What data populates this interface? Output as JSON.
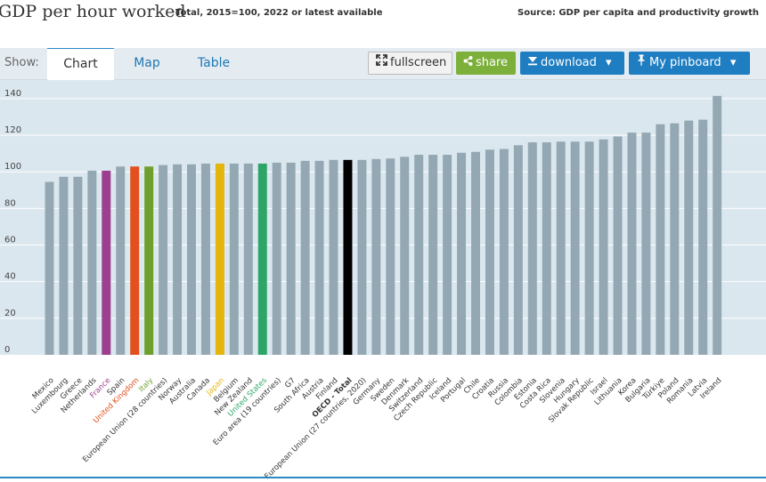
{
  "header": {
    "title": "GDP per hour worked",
    "subtitle": "Total, 2015=100, 2022 or latest available",
    "source": "Source: GDP per capita and productivity growth"
  },
  "toolbar": {
    "show_label": "Show:",
    "tabs": [
      "Chart",
      "Map",
      "Table"
    ],
    "fullscreen_label": "fullscreen",
    "share_label": "share",
    "download_label": "download",
    "pinboard_label": "My pinboard"
  },
  "colors": {
    "default_bar": "#94a8b3",
    "france": "#9b3f8e",
    "united_kingdom": "#e1501d",
    "italy": "#6e9f2c",
    "japan": "#e3b50d",
    "united_states": "#2da567",
    "oecd_total": "#000000",
    "plot_background": "#dbe7ef",
    "accent": "#1f7ec2"
  },
  "chart_data": {
    "type": "bar",
    "title": "GDP per hour worked",
    "subtitle": "Total, 2015=100, 2022 or latest available",
    "xlabel": "",
    "ylabel": "",
    "ylim": [
      0,
      145
    ],
    "yticks": [
      0,
      20,
      40,
      60,
      80,
      100,
      120,
      140
    ],
    "grid": true,
    "categories": [
      "Mexico",
      "Luxembourg",
      "Greece",
      "Netherlands",
      "France",
      "Spain",
      "United Kingdom",
      "Italy",
      "European Union (28 countries)",
      "Norway",
      "Australia",
      "Canada",
      "Japan",
      "Belgium",
      "New Zealand",
      "United States",
      "Euro area (19 countries)",
      "G7",
      "South Africa",
      "Austria",
      "Finland",
      "OECD - Total",
      "European Union (27 countries, 2020)",
      "Germany",
      "Sweden",
      "Denmark",
      "Switzerland",
      "Czech Republic",
      "Iceland",
      "Portugal",
      "Chile",
      "Croatia",
      "Russia",
      "Colombia",
      "Estonia",
      "Costa Rica",
      "Slovenia",
      "Hungary",
      "Slovak Republic",
      "Israel",
      "Lithuania",
      "Korea",
      "Bulgaria",
      "Türkiye",
      "Poland",
      "Romania",
      "Latvia",
      "Ireland"
    ],
    "values": [
      94.5,
      97.3,
      97.3,
      100.6,
      100.6,
      102.9,
      102.9,
      102.9,
      103.7,
      104.1,
      104.1,
      104.5,
      104.5,
      104.5,
      104.5,
      104.5,
      105.0,
      105.0,
      106.0,
      106.0,
      106.5,
      106.5,
      106.5,
      107.0,
      107.3,
      108.2,
      109.3,
      109.3,
      109.3,
      110.4,
      110.9,
      112.1,
      112.5,
      114.5,
      116.1,
      116.1,
      116.5,
      116.5,
      116.5,
      117.7,
      119.3,
      121.4,
      121.4,
      126.0,
      126.5,
      128.0,
      128.5,
      141.5
    ],
    "highlights": {
      "France": "#9b3f8e",
      "United Kingdom": "#e1501d",
      "Italy": "#6e9f2c",
      "Japan": "#e3b50d",
      "United States": "#2da567",
      "OECD - Total": "#000000"
    }
  }
}
